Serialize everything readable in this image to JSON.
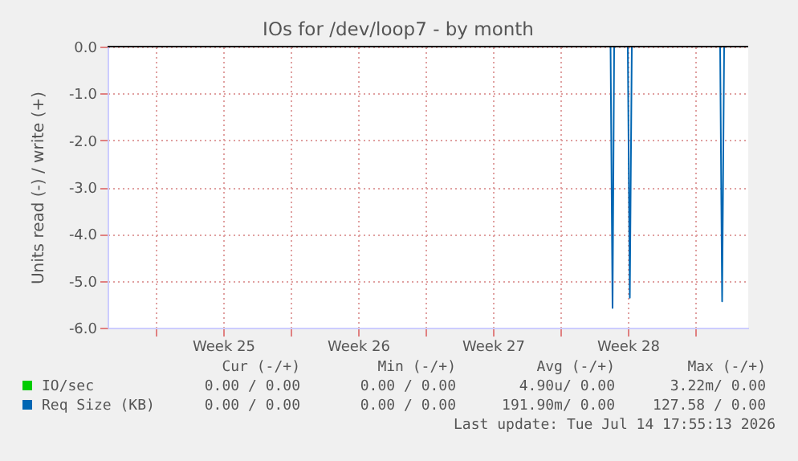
{
  "chart_data": {
    "type": "line",
    "title": "IOs for /dev/loop7 - by month",
    "ylabel": "Units read (-) / write (+)",
    "xlim": [
      "2026-06-12T12:00",
      "2026-07-15T18:00"
    ],
    "ylim": [
      -6.0,
      0.0
    ],
    "xticks": [
      {
        "value": "2026-06-15",
        "label": null
      },
      {
        "value": "2026-06-18T12:00",
        "label": "Week 25"
      },
      {
        "value": "2026-06-22",
        "label": null
      },
      {
        "value": "2026-06-25T12:00",
        "label": "Week 26"
      },
      {
        "value": "2026-06-29",
        "label": null
      },
      {
        "value": "2026-07-02T12:00",
        "label": "Week 27"
      },
      {
        "value": "2026-07-06",
        "label": null
      },
      {
        "value": "2026-07-09T12:00",
        "label": "Week 28"
      },
      {
        "value": "2026-07-13",
        "label": null
      }
    ],
    "yticks": [
      {
        "value": 0,
        "label": "0.0"
      },
      {
        "value": -1,
        "label": "-1.0"
      },
      {
        "value": -2,
        "label": "-2.0"
      },
      {
        "value": -3,
        "label": "-3.0"
      },
      {
        "value": -4,
        "label": "-4.0"
      },
      {
        "value": -5,
        "label": "-5.0"
      },
      {
        "value": -6,
        "label": "-6.0"
      }
    ],
    "grid": true,
    "legend": "bottom",
    "ref_lines": [
      {
        "axis": "y",
        "value": 0,
        "color": "#000000"
      }
    ],
    "series": [
      {
        "name": "IO/sec",
        "color": "#00cc00"
      },
      {
        "name": "Req Size (KB)",
        "color": "#0066b3",
        "x": [
          "2026-07-08T14:30",
          "2026-07-08T17:00",
          "2026-07-08T19:00",
          "2026-07-09T12:00",
          "2026-07-09T14:30",
          "2026-07-09T17:00",
          "2026-07-14T07:00",
          "2026-07-14T09:30",
          "2026-07-14T12:00"
        ],
        "values": [
          0,
          -5.58,
          0,
          0,
          -5.36,
          0,
          0,
          -5.44,
          0
        ]
      }
    ],
    "annotations": [
      "Cur (-/+)",
      "Min (-/+)",
      "Avg (-/+)",
      "Max (-/+)",
      "0.00 / 0.00",
      "0.00 / 0.00",
      "4.90u/ 0.00",
      "3.22m/ 0.00",
      "0.00 / 0.00",
      "0.00 / 0.00",
      "191.90m/ 0.00",
      "127.58 / 0.00",
      "Last update: Tue Jul 14 17:55:13 2026"
    ]
  }
}
